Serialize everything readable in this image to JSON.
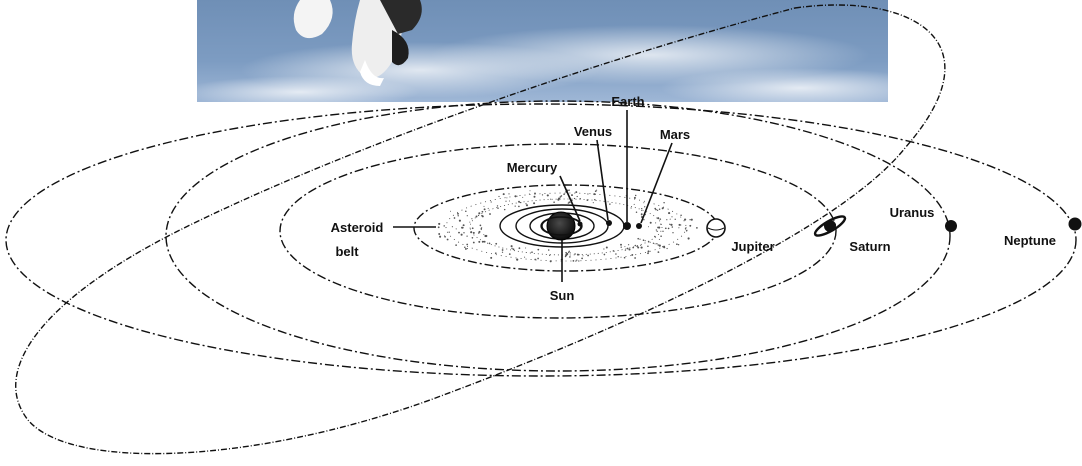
{
  "diagram": {
    "labels": {
      "earth": "Earth",
      "venus": "Venus",
      "mars": "Mars",
      "mercury": "Mercury",
      "asteroid_belt_line1": "Asteroid",
      "asteroid_belt_line2": "belt",
      "jupiter": "Jupiter",
      "saturn": "Saturn",
      "uranus": "Uranus",
      "neptune": "Neptune",
      "sun": "Sun"
    }
  }
}
